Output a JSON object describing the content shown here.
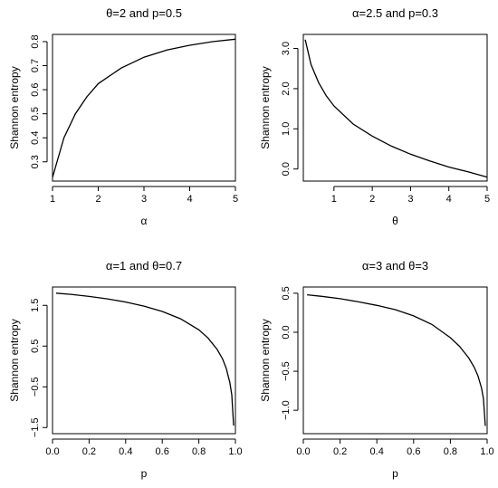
{
  "chart_data": [
    {
      "type": "line",
      "title": "θ=2 and  p=0.5",
      "xlabel": "α",
      "ylabel": "Shannon entropy",
      "xlim": [
        1,
        5
      ],
      "ylim": [
        0.22,
        0.83
      ],
      "xticks": [
        "1",
        "2",
        "3",
        "4",
        "5"
      ],
      "yticks": [
        "0.3",
        "0.4",
        "0.5",
        "0.6",
        "0.7",
        "0.8"
      ],
      "grid": false,
      "series": [
        {
          "x": [
            1.0,
            1.25,
            1.5,
            1.75,
            2.0,
            2.5,
            3.0,
            3.5,
            4.0,
            4.5,
            5.0
          ],
          "y": [
            0.235,
            0.4,
            0.5,
            0.57,
            0.625,
            0.69,
            0.735,
            0.765,
            0.785,
            0.8,
            0.81
          ]
        }
      ]
    },
    {
      "type": "line",
      "title": "α=2.5 and  p=0.3",
      "xlabel": "θ",
      "ylabel": "Shannon entropy",
      "xlim": [
        0.2,
        5
      ],
      "ylim": [
        -0.3,
        3.35
      ],
      "xticks": [
        "1",
        "2",
        "3",
        "4",
        "5"
      ],
      "yticks": [
        "0.0",
        "1.0",
        "2.0",
        "3.0"
      ],
      "grid": false,
      "series": [
        {
          "x": [
            0.25,
            0.4,
            0.6,
            0.8,
            1.0,
            1.5,
            2.0,
            2.5,
            3.0,
            3.5,
            4.0,
            4.5,
            5.0
          ],
          "y": [
            3.22,
            2.6,
            2.15,
            1.82,
            1.57,
            1.12,
            0.82,
            0.57,
            0.37,
            0.2,
            0.05,
            -0.07,
            -0.2
          ]
        }
      ]
    },
    {
      "type": "line",
      "title": "α=1 and θ=0.7",
      "xlabel": "p",
      "ylabel": "Shannon entropy",
      "xlim": [
        0,
        1
      ],
      "ylim": [
        -1.65,
        1.95
      ],
      "xticks": [
        "0.0",
        "0.2",
        "0.4",
        "0.6",
        "0.8",
        "1.0"
      ],
      "yticks": [
        "−1.5",
        "−0.5",
        "0.5",
        "1.5"
      ],
      "grid": false,
      "series": [
        {
          "x": [
            0.02,
            0.1,
            0.2,
            0.3,
            0.4,
            0.5,
            0.6,
            0.7,
            0.8,
            0.85,
            0.9,
            0.93,
            0.95,
            0.97,
            0.98,
            0.99
          ],
          "y": [
            1.8,
            1.77,
            1.72,
            1.66,
            1.58,
            1.48,
            1.35,
            1.17,
            0.9,
            0.7,
            0.42,
            0.18,
            -0.05,
            -0.4,
            -0.7,
            -1.45
          ]
        }
      ]
    },
    {
      "type": "line",
      "title": "α=3 and θ=3",
      "xlabel": "p",
      "ylabel": "Shannon entropy",
      "xlim": [
        0,
        1
      ],
      "ylim": [
        -1.3,
        0.58
      ],
      "xticks": [
        "0.0",
        "0.2",
        "0.4",
        "0.6",
        "0.8",
        "1.0"
      ],
      "yticks": [
        "−1.0",
        "−0.5",
        "0.0",
        "0.5"
      ],
      "grid": false,
      "series": [
        {
          "x": [
            0.02,
            0.1,
            0.2,
            0.3,
            0.4,
            0.5,
            0.6,
            0.7,
            0.8,
            0.85,
            0.9,
            0.93,
            0.95,
            0.97,
            0.98,
            0.99
          ],
          "y": [
            0.48,
            0.46,
            0.43,
            0.39,
            0.345,
            0.29,
            0.21,
            0.1,
            -0.07,
            -0.18,
            -0.33,
            -0.45,
            -0.56,
            -0.72,
            -0.85,
            -1.2
          ]
        }
      ]
    }
  ]
}
